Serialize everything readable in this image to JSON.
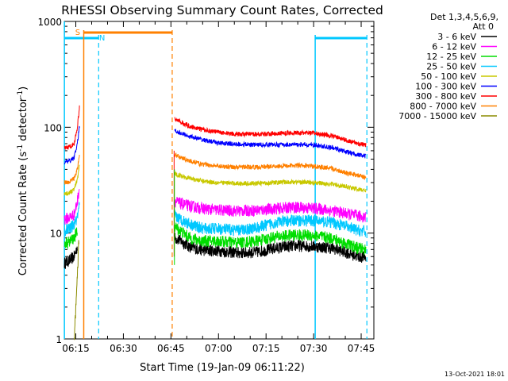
{
  "chart_data": {
    "type": "line",
    "title": "RHESSI Observing Summary Count Rates, Corrected",
    "xlabel": "Start Time (19-Jan-09 06:11:22)",
    "ylabel_main": "Corrected Count Rate (s",
    "ylabel_sup1": "-1",
    "ylabel_mid": " detector",
    "ylabel_sup2": "-1",
    "ylabel_end": ")",
    "y_scale": "log",
    "ylim": [
      1,
      1000
    ],
    "xlim": [
      "06:11:22",
      "07:49:00"
    ],
    "x_ticks": [
      {
        "t": "06:15",
        "min": 15
      },
      {
        "t": "06:30",
        "min": 30
      },
      {
        "t": "06:45",
        "min": 45
      },
      {
        "t": "07:00",
        "min": 60
      },
      {
        "t": "07:15",
        "min": 75
      },
      {
        "t": "07:30",
        "min": 90
      },
      {
        "t": "07:45",
        "min": 105
      }
    ],
    "y_ticks": [
      {
        "label": "1",
        "v": 1
      },
      {
        "label": "10",
        "v": 10
      },
      {
        "label": "100",
        "v": 100
      },
      {
        "label": "1000",
        "v": 1000
      }
    ],
    "legend": {
      "header1": "Det 1,3,4,5,6,9,",
      "header2": "Att 0",
      "position": "top-right"
    },
    "series": [
      {
        "name": "3 - 6 keV",
        "color": "#000000",
        "seg1": [
          [
            11.4,
            5.2
          ],
          [
            13,
            5.5
          ],
          [
            14.5,
            6.0
          ],
          [
            15.5,
            7.5
          ]
        ],
        "seg2": [
          [
            46.2,
            9.0
          ],
          [
            48,
            8.5
          ],
          [
            51,
            7.4
          ],
          [
            55,
            6.9
          ],
          [
            60,
            6.8
          ],
          [
            66,
            6.5
          ],
          [
            72,
            6.6
          ],
          [
            78,
            7.2
          ],
          [
            84,
            7.6
          ],
          [
            90,
            7.5
          ],
          [
            96,
            7.2
          ],
          [
            100,
            6.6
          ],
          [
            104,
            6.0
          ],
          [
            106.5,
            5.9
          ]
        ]
      },
      {
        "name": "6 - 12 keV",
        "color": "#ff00ff",
        "seg1": [
          [
            11.4,
            13.5
          ],
          [
            13,
            14
          ],
          [
            14.5,
            15
          ],
          [
            15.5,
            20
          ],
          [
            16.2,
            28
          ]
        ],
        "seg2": [
          [
            46.2,
            20
          ],
          [
            48,
            19
          ],
          [
            51,
            18
          ],
          [
            55,
            17
          ],
          [
            60,
            16.5
          ],
          [
            66,
            16.2
          ],
          [
            72,
            16.4
          ],
          [
            78,
            17
          ],
          [
            84,
            17.5
          ],
          [
            90,
            17.2
          ],
          [
            96,
            16.3
          ],
          [
            100,
            15.3
          ],
          [
            104,
            14.5
          ],
          [
            106.5,
            14.2
          ]
        ]
      },
      {
        "name": "12 - 25 keV",
        "color": "#00dd00",
        "seg1": [
          [
            11.4,
            8.0
          ],
          [
            13,
            8.3
          ],
          [
            14.5,
            9.0
          ],
          [
            15.5,
            10.5
          ]
        ],
        "seg2": [
          [
            46.2,
            11.5
          ],
          [
            48,
            10.5
          ],
          [
            51,
            9.0
          ],
          [
            55,
            8.4
          ],
          [
            60,
            8.4
          ],
          [
            66,
            8.1
          ],
          [
            72,
            8.4
          ],
          [
            78,
            9.2
          ],
          [
            84,
            9.6
          ],
          [
            90,
            9.5
          ],
          [
            96,
            8.9
          ],
          [
            100,
            8.0
          ],
          [
            104,
            7.2
          ],
          [
            106.5,
            7.0
          ]
        ]
      },
      {
        "name": "25 - 50 keV",
        "color": "#00c8ff",
        "seg1": [
          [
            11.4,
            10.5
          ],
          [
            13,
            11
          ],
          [
            14.5,
            12
          ],
          [
            15.5,
            14
          ],
          [
            16.2,
            18
          ]
        ],
        "seg2": [
          [
            46.2,
            14.5
          ],
          [
            48,
            13.5
          ],
          [
            51,
            12.2
          ],
          [
            55,
            11.0
          ],
          [
            60,
            11.0
          ],
          [
            66,
            10.6
          ],
          [
            72,
            11.2
          ],
          [
            78,
            12.6
          ],
          [
            84,
            13.2
          ],
          [
            90,
            13.1
          ],
          [
            96,
            12.6
          ],
          [
            100,
            11.6
          ],
          [
            104,
            10.6
          ],
          [
            106.5,
            10.3
          ]
        ]
      },
      {
        "name": "50 - 100 keV",
        "color": "#c8c800",
        "seg1": [
          [
            11.4,
            23.5
          ],
          [
            13,
            24
          ],
          [
            14.5,
            26
          ],
          [
            15.5,
            32
          ],
          [
            16.2,
            45
          ]
        ],
        "seg2": [
          [
            46.2,
            36
          ],
          [
            48,
            35
          ],
          [
            51,
            33
          ],
          [
            55,
            31
          ],
          [
            60,
            30
          ],
          [
            66,
            29.5
          ],
          [
            72,
            29.5
          ],
          [
            78,
            30
          ],
          [
            84,
            30.5
          ],
          [
            90,
            30
          ],
          [
            96,
            29
          ],
          [
            100,
            27.5
          ],
          [
            104,
            26
          ],
          [
            106.5,
            25.2
          ]
        ]
      },
      {
        "name": "100 - 300 keV",
        "color": "#0000ff",
        "seg1": [
          [
            11.4,
            47
          ],
          [
            13,
            48
          ],
          [
            14.5,
            52
          ],
          [
            15.5,
            70
          ],
          [
            16.2,
            105
          ]
        ],
        "seg2": [
          [
            46.2,
            93
          ],
          [
            48,
            88
          ],
          [
            51,
            82
          ],
          [
            55,
            76
          ],
          [
            60,
            71
          ],
          [
            66,
            69
          ],
          [
            72,
            68.5
          ],
          [
            78,
            68.5
          ],
          [
            84,
            68.5
          ],
          [
            90,
            68
          ],
          [
            96,
            64
          ],
          [
            100,
            59
          ],
          [
            104,
            55
          ],
          [
            106.5,
            53
          ]
        ]
      },
      {
        "name": "300 - 800 keV",
        "color": "#ff0000",
        "seg1": [
          [
            11.4,
            64
          ],
          [
            13,
            65
          ],
          [
            14.5,
            70
          ],
          [
            15.5,
            100
          ],
          [
            16.2,
            160
          ]
        ],
        "seg2": [
          [
            46.2,
            120
          ],
          [
            48,
            112
          ],
          [
            51,
            102
          ],
          [
            55,
            95
          ],
          [
            60,
            90
          ],
          [
            66,
            86
          ],
          [
            72,
            86
          ],
          [
            78,
            87.5
          ],
          [
            84,
            88.5
          ],
          [
            90,
            88
          ],
          [
            96,
            83
          ],
          [
            100,
            76
          ],
          [
            104,
            70
          ],
          [
            106.5,
            68
          ]
        ]
      },
      {
        "name": "800 - 7000 keV",
        "color": "#ff8000",
        "seg1": [
          [
            11.4,
            30
          ],
          [
            13,
            30.5
          ],
          [
            14.5,
            33
          ],
          [
            15.5,
            40
          ],
          [
            16.2,
            55
          ]
        ],
        "seg2": [
          [
            46.2,
            55
          ],
          [
            48,
            52
          ],
          [
            51,
            48
          ],
          [
            55,
            44.5
          ],
          [
            60,
            43
          ],
          [
            66,
            42
          ],
          [
            72,
            42
          ],
          [
            78,
            43
          ],
          [
            84,
            43.5
          ],
          [
            90,
            43
          ],
          [
            96,
            40.5
          ],
          [
            100,
            37.5
          ],
          [
            104,
            35
          ],
          [
            106.5,
            33.5
          ]
        ]
      },
      {
        "name": "7000 - 15000 keV",
        "color": "#8c8c00",
        "seg1": [
          [
            14.5,
            1.0
          ],
          [
            15.2,
            2.5
          ],
          [
            16.0,
            9.0
          ]
        ],
        "seg2": []
      }
    ],
    "flag_lines": {
      "s_label": "S",
      "n_label": "N",
      "s_color": "#ff8000",
      "n_color": "#00c8ff"
    }
  },
  "footer": {
    "timestamp": "13-Oct-2021 18:01"
  }
}
